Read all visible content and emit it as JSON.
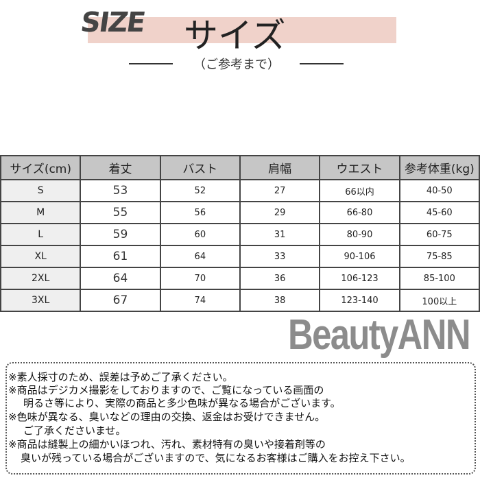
{
  "header": {
    "logo": "SIZE",
    "title": "サイズ",
    "subtitle": "（ご参考まで）",
    "accent": "#f0d2ca"
  },
  "table": {
    "headers": [
      "サイズ(cm)",
      "着丈",
      "バスト",
      "肩幅",
      "ウエスト",
      "参考体重(kg)"
    ],
    "rows": [
      [
        "S",
        "53",
        "52",
        "27",
        "66以内",
        "40-50"
      ],
      [
        "M",
        "55",
        "56",
        "29",
        "66-80",
        "45-60"
      ],
      [
        "L",
        "59",
        "60",
        "31",
        "80-90",
        "60-75"
      ],
      [
        "XL",
        "61",
        "64",
        "33",
        "90-106",
        "75-85"
      ],
      [
        "2XL",
        "64",
        "70",
        "36",
        "106-123",
        "85-100"
      ],
      [
        "3XL",
        "67",
        "74",
        "38",
        "123-140",
        "100以上"
      ]
    ]
  },
  "notes": [
    "※素人採寸のため、誤差は予めご了承ください。",
    "※商品はデジカメ撮影をしておりますので、ご覧になっている画面の",
    "明るさ等により、実際の商品と多少色味が異なる場合がございます。",
    "※色味が異なる、臭いなどの理由の交換、返金はお受けできません。",
    "ご了承くださいませ。",
    "※商品は縫製上の細かいほつれ、汚れ、素材特有の臭いや接着剤等の",
    "臭いが残っている場合がございますので、気になるお客様はご購入をお控え下さい。"
  ],
  "watermark": "BeautyANN"
}
